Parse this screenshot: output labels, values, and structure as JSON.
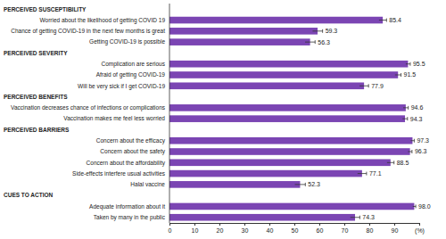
{
  "chart_data": {
    "type": "bar",
    "orientation": "horizontal",
    "data_labels": true,
    "grid": false,
    "color": "#7b45b3",
    "categories": [
      "PERCEIVED SUSCEPTIBILITY",
      "Worried about the likelihood of getting COVID 19",
      "Chance of getting COVID-19 in the next few months is great",
      "Getting COVID-19 is possible",
      "PERCEIVED SEVERITY",
      "Complication are serious",
      "Afraid of getting COVID-19",
      "Will be very sick if I get COVID-19",
      "PERCEIVED BENEFITS",
      "Vaccination decreases chance of infections or complications",
      "Vaccination makes me feel less worried",
      "PERCEIVED BARRIERS",
      "Concern about the efficacy",
      "Concern about the safety",
      "Concern about the affordability",
      "Side-effects interfere usual activities",
      "Halal vaccine",
      "CUES TO ACTION",
      "Adequate information about it",
      "Taken by many in the public"
    ],
    "values": [
      null,
      85.4,
      59.3,
      56.3,
      null,
      95.5,
      91.5,
      77.9,
      null,
      94.6,
      94.3,
      null,
      97.3,
      96.3,
      88.5,
      77.1,
      52.3,
      null,
      98.0,
      74.3
    ],
    "value_labels": [
      null,
      "85.4",
      "59.3",
      "56.3",
      null,
      "95.5",
      "91.5",
      "77.9",
      null,
      "94.6",
      "94.3",
      null,
      "97.3",
      "96.3",
      "88.5",
      "77.1",
      "52.3",
      null,
      "98.0",
      "74.3"
    ],
    "errors": [
      null,
      1.5,
      2.0,
      2.0,
      null,
      0.9,
      1.2,
      1.8,
      null,
      1.0,
      1.0,
      null,
      0.7,
      0.8,
      1.4,
      1.8,
      2.1,
      null,
      0.6,
      1.9
    ],
    "xlim": [
      0,
      100
    ],
    "xticks": [
      0,
      10,
      20,
      30,
      40,
      50,
      60,
      70,
      80,
      90,
      {
        "value": 100,
        "label": "(%)"
      }
    ]
  }
}
